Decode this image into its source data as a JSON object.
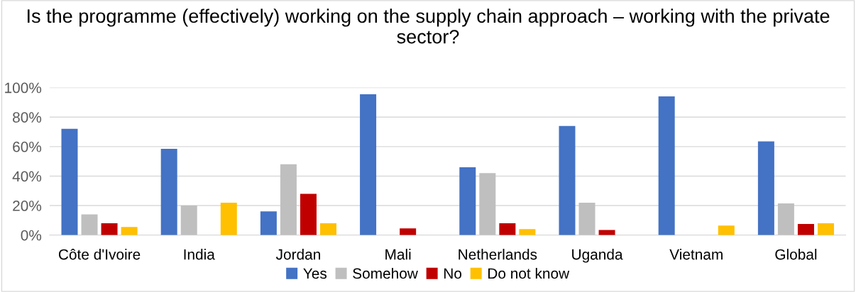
{
  "chart_data": {
    "type": "bar",
    "title": "Is the programme (effectively) working on the supply chain approach – working with the private sector?",
    "categories": [
      "Côte d'Ivoire",
      "India",
      "Jordan",
      "Mali",
      "Netherlands",
      "Uganda",
      "Vietnam",
      "Global"
    ],
    "series": [
      {
        "name": "Yes",
        "color": "#4472c4",
        "values": [
          72,
          58.5,
          16,
          95.5,
          46,
          74,
          94,
          63.5
        ]
      },
      {
        "name": "Somehow",
        "color": "#bfbfbf",
        "values": [
          14,
          20,
          48,
          0,
          42,
          22,
          0,
          21.5
        ]
      },
      {
        "name": "No",
        "color": "#c00000",
        "values": [
          8,
          0,
          28,
          4.5,
          8,
          3.5,
          0,
          7.5
        ]
      },
      {
        "name": "Do not know",
        "color": "#ffc000",
        "values": [
          5.5,
          22,
          8,
          0,
          4,
          0,
          6.5,
          8
        ]
      }
    ],
    "ylim": [
      0,
      100
    ],
    "yticks": [
      {
        "value": 0,
        "label": "0%"
      },
      {
        "value": 20,
        "label": "20%"
      },
      {
        "value": 40,
        "label": "40%"
      },
      {
        "value": 60,
        "label": "60%"
      },
      {
        "value": 80,
        "label": "80%"
      },
      {
        "value": 100,
        "label": "100%"
      }
    ],
    "grid": "y",
    "legend": "bottom"
  }
}
